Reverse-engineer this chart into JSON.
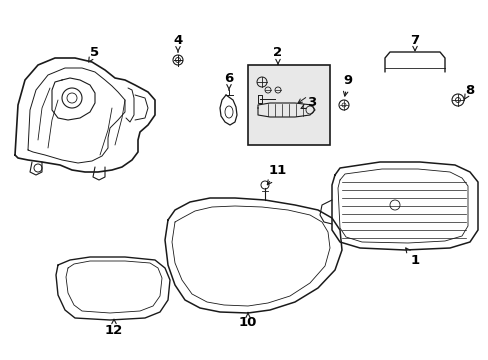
{
  "bg_color": "#ffffff",
  "line_color": "#1a1a1a",
  "figsize": [
    4.89,
    3.6
  ],
  "dpi": 100,
  "label_fontsize": 9.5
}
